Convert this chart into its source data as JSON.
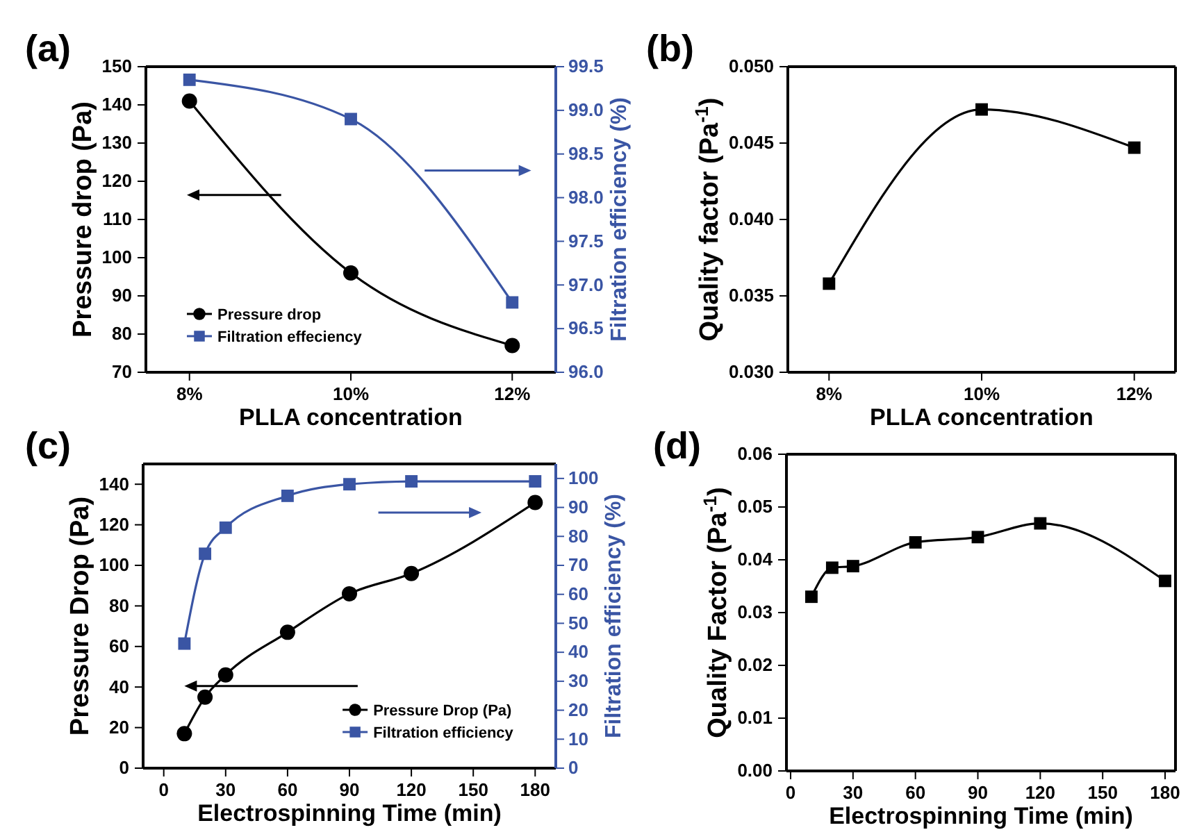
{
  "chart_data": [
    {
      "type": "line",
      "title": "(a)",
      "xlabel": "PLLA concentration",
      "ylabel": "Pressure drop (Pa)",
      "y2label": "Filtration efficiency (%)",
      "categories": [
        "8%",
        "10%",
        "12%"
      ],
      "legend": "bottom left",
      "series": [
        {
          "name": "Pressure drop",
          "color": "#000000",
          "marker": "circle",
          "values": [
            141,
            96,
            77
          ]
        },
        {
          "name": "Filtration effeciency",
          "color": "#3a55a4",
          "marker": "square",
          "axis": "y2",
          "values": [
            99.35,
            98.9,
            96.8
          ]
        }
      ],
      "ylim": [
        70,
        150
      ],
      "yticks": [
        70,
        80,
        90,
        100,
        110,
        120,
        130,
        140,
        150
      ],
      "y2lim": [
        96,
        99.5
      ],
      "y2ticks": [
        {
          "value": 96,
          "label": "96.0"
        },
        96.5,
        {
          "value": 97,
          "label": "97.0"
        },
        97.5,
        {
          "value": 98,
          "label": "98.0"
        },
        98.5,
        {
          "value": 99,
          "label": "99.0"
        },
        99.5
      ]
    },
    {
      "type": "line",
      "title": "(b)",
      "xlabel": "PLLA concentration",
      "ylabel": "Quality factor (Pa$^{-1}$)",
      "categories": [
        "8%",
        "10%",
        "12%"
      ],
      "marker": "square",
      "series": [
        {
          "color": "#000000",
          "values": [
            0.0358,
            0.0472,
            0.0447
          ]
        }
      ],
      "ylim": [
        0.03,
        0.05
      ],
      "yticks": [
        {
          "value": 0.03,
          "label": "0.030"
        },
        {
          "value": 0.035,
          "label": "0.035"
        },
        {
          "value": 0.04,
          "label": "0.040"
        },
        {
          "value": 0.045,
          "label": "0.045"
        },
        {
          "value": 0.05,
          "label": "0.050"
        }
      ]
    },
    {
      "type": "line",
      "title": "(c)",
      "xlabel": "Electrospinning Time (min)",
      "ylabel": "Pressure Drop (Pa)",
      "y2label": "Filtration efficiency (%)",
      "x": [
        10,
        20,
        30,
        60,
        90,
        120,
        180
      ],
      "legend": "bottom right",
      "series": [
        {
          "name": "Pressure Drop (Pa)",
          "color": "#000000",
          "marker": "circle",
          "values": [
            17,
            35,
            46,
            67,
            86,
            96,
            131
          ]
        },
        {
          "name": "Filtration efficiency",
          "color": "#3a55a4",
          "marker": "square",
          "axis": "y2",
          "values": [
            43,
            74,
            83,
            94,
            98,
            99,
            99
          ]
        }
      ],
      "xlim": [
        -10,
        190
      ],
      "xticks": [
        0,
        30,
        60,
        90,
        120,
        150,
        180
      ],
      "ylim": [
        0,
        150
      ],
      "yticks": [
        0,
        20,
        40,
        60,
        80,
        100,
        120,
        140
      ],
      "y2lim": [
        0,
        105
      ],
      "y2ticks": [
        0,
        10,
        20,
        30,
        40,
        50,
        60,
        70,
        80,
        90,
        100
      ]
    },
    {
      "type": "line",
      "title": "(d)",
      "xlabel": "Electrospinning Time (min)",
      "ylabel": "Quality Factor (Pa$^{-1}$)",
      "x": [
        10,
        20,
        30,
        60,
        90,
        120,
        180
      ],
      "marker": "square",
      "series": [
        {
          "color": "#000000",
          "values": [
            0.033,
            0.0385,
            0.0388,
            0.0433,
            0.0443,
            0.0469,
            0.036
          ]
        }
      ],
      "xlim": [
        -2,
        185
      ],
      "xticks": [
        0,
        30,
        60,
        90,
        120,
        150,
        180
      ],
      "ylim": [
        0,
        0.06
      ],
      "yticks": [
        {
          "value": 0,
          "label": "0.00"
        },
        {
          "value": 0.01,
          "label": "0.01"
        },
        {
          "value": 0.02,
          "label": "0.02"
        },
        {
          "value": 0.03,
          "label": "0.03"
        },
        {
          "value": 0.04,
          "label": "0.04"
        },
        {
          "value": 0.05,
          "label": "0.05"
        },
        {
          "value": 0.06,
          "label": "0.06"
        }
      ]
    }
  ]
}
